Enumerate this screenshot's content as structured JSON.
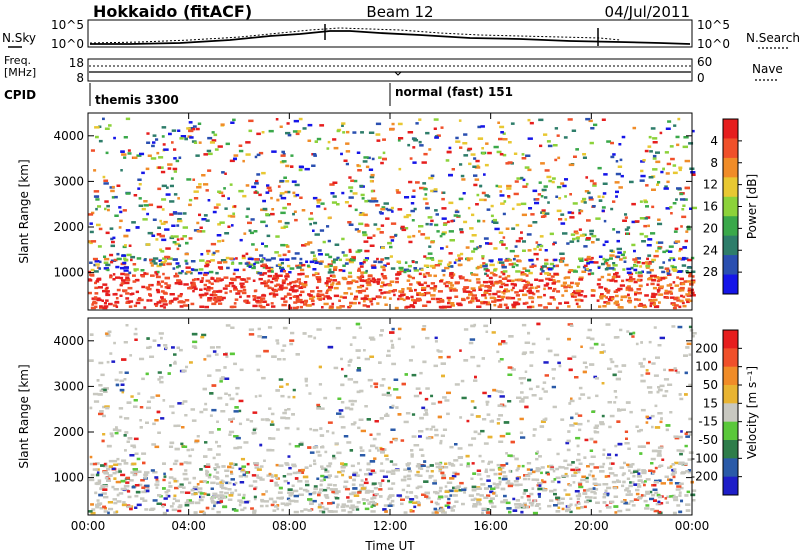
{
  "header": {
    "title_left": "Hokkaido (fitACF)",
    "title_center": "Beam 12",
    "title_right": "04/Jul/2011"
  },
  "noise_panel": {
    "label_left": "N.Sky",
    "label_right": "N.Search",
    "tick_top_left": "10^5",
    "tick_bottom_left": "10^0",
    "tick_top_right": "10^5",
    "tick_bottom_right": "10^0"
  },
  "freq_panel": {
    "label_left_line1": "Freq.",
    "label_left_line2": "[MHz]",
    "tick_top_left": "18",
    "tick_bottom_left": "8",
    "label_right": "Nave",
    "tick_top_right": "60",
    "tick_bottom_right": "0"
  },
  "cpid_panel": {
    "label": "CPID",
    "segments": [
      {
        "start": "00:00",
        "text": "themis 3300"
      },
      {
        "start": "12:00",
        "text": "normal (fast) 151"
      }
    ]
  },
  "chart_data": [
    {
      "type": "heatmap",
      "name": "power",
      "ylabel": "Slant Range [km]",
      "ylim": [
        180,
        4500
      ],
      "yticks": [
        1000,
        2000,
        3000,
        4000
      ],
      "xlabel": "",
      "xticks": [
        "00:00",
        "04:00",
        "08:00",
        "12:00",
        "16:00",
        "20:00",
        "00:00"
      ],
      "colorbar": {
        "label": "Power [dB]",
        "min": 0,
        "max": 32,
        "ticks": [
          "4",
          "8",
          "12",
          "16",
          "20",
          "24",
          "28"
        ],
        "colors": [
          "#1515e8",
          "#2a4fb0",
          "#2e7d6a",
          "#3aa84a",
          "#8cd23a",
          "#e8c832",
          "#f08c28",
          "#f0502a",
          "#e61e1e"
        ]
      }
    },
    {
      "type": "heatmap",
      "name": "velocity",
      "ylabel": "Slant Range [km]",
      "ylim": [
        180,
        4500
      ],
      "yticks": [
        1000,
        2000,
        3000,
        4000
      ],
      "xlabel": "Time UT",
      "xticks": [
        "00:00",
        "04:00",
        "08:00",
        "12:00",
        "16:00",
        "20:00",
        "00:00"
      ],
      "colorbar": {
        "label": "Velocity [m s⁻¹]",
        "min": -250,
        "max": 250,
        "ticks": [
          "200",
          "100",
          "50",
          "15",
          "-15",
          "-50",
          "-100",
          "-200"
        ],
        "colors": [
          "#1e1ec8",
          "#2a5aa8",
          "#2e7d4a",
          "#5ac83a",
          "#c8c8c0",
          "#e8b432",
          "#f08c28",
          "#f0502a",
          "#e61e1e"
        ]
      }
    }
  ]
}
